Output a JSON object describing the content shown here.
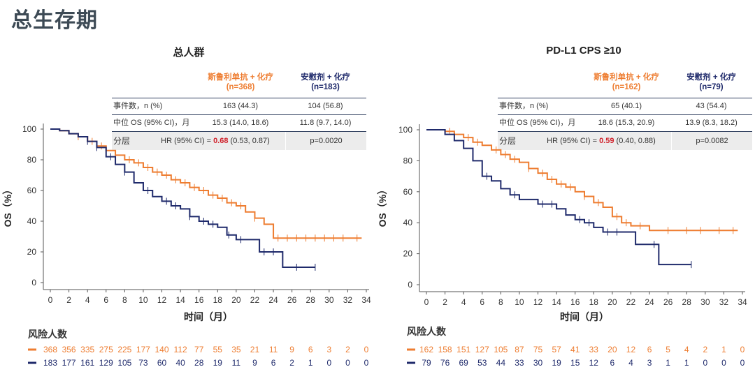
{
  "page_title": "总生存期",
  "chart_data": [
    {
      "type": "line",
      "subtitle": "总人群",
      "xlabel": "时间（月）",
      "ylabel": "OS（%）",
      "xlim": [
        0,
        34
      ],
      "ylim": [
        0,
        100
      ],
      "xticks": [
        0,
        2,
        4,
        6,
        8,
        10,
        12,
        14,
        16,
        18,
        20,
        22,
        24,
        26,
        28,
        30,
        32,
        34
      ],
      "yticks": [
        0,
        20,
        40,
        60,
        80,
        100
      ],
      "table": {
        "arm1_name": "斯鲁利单抗 + 化疗",
        "arm1_n": "(n=368)",
        "arm2_name": "安慰剂 + 化疗",
        "arm2_n": "(n=183)",
        "events_label": "事件数，n (%)",
        "events1": "163 (44.3)",
        "events2": "104 (56.8)",
        "median_label": "中位 OS (95% CI)，月",
        "median1": "15.3 (14.0, 18.6)",
        "median2": "11.8 (9.7, 14.0)",
        "strat_label": "分层",
        "hr_prefix": "HR (95% CI) = ",
        "hr_value": "0.68",
        "hr_ci": " (0.53, 0.87)",
        "p": "p=0.0020"
      },
      "series": [
        {
          "name": "斯鲁利单抗 + 化疗",
          "color": "#ee7d31",
          "x": [
            0,
            1,
            2,
            3,
            4,
            5,
            6,
            7,
            8,
            9,
            10,
            11,
            12,
            13,
            14,
            15,
            16,
            17,
            18,
            19,
            20,
            21,
            22,
            23,
            24,
            33.5
          ],
          "y": [
            100,
            99,
            97,
            95,
            92,
            89,
            86,
            83,
            80,
            78,
            75,
            72,
            70,
            67,
            65,
            62,
            60,
            57,
            55,
            52,
            50,
            46,
            42,
            38,
            29,
            29
          ],
          "censor": [
            3,
            4.5,
            5.5,
            7,
            8.5,
            9.5,
            10.5,
            11.5,
            12.5,
            13.5,
            14.5,
            15.5,
            16.5,
            17.5,
            18.5,
            19.5,
            20.5,
            22,
            24.5,
            25.5,
            26.5,
            27.5,
            28.5,
            29.5,
            30.5,
            31.5,
            33
          ],
          "risk": [
            368,
            356,
            335,
            275,
            225,
            177,
            140,
            112,
            77,
            55,
            35,
            21,
            11,
            9,
            6,
            3,
            2,
            0
          ]
        },
        {
          "name": "安慰剂 + 化疗",
          "color": "#1f2a6b",
          "x": [
            0,
            1,
            2,
            3,
            4,
            5,
            6,
            7,
            8,
            9,
            10,
            11,
            12,
            13,
            14,
            15,
            16,
            17,
            18,
            19,
            20,
            21,
            22.5,
            25,
            28.5
          ],
          "y": [
            100,
            99,
            97,
            95,
            92,
            88,
            82,
            77,
            72,
            65,
            60,
            56,
            53,
            50,
            48,
            43,
            40,
            38,
            36,
            31,
            28,
            28,
            20,
            10,
            10
          ],
          "censor": [
            4,
            5,
            6.5,
            8,
            10.5,
            12.5,
            13.5,
            15,
            16.5,
            17.5,
            19.2,
            20.5,
            23,
            24,
            26.5,
            28.5
          ],
          "risk": [
            183,
            177,
            161,
            129,
            105,
            73,
            60,
            40,
            28,
            19,
            11,
            9,
            6,
            2,
            1,
            0,
            0,
            0
          ]
        }
      ],
      "risk_title": "风险人数"
    },
    {
      "type": "line",
      "subtitle": "PD-L1 CPS ≥10",
      "xlabel": "时间（月）",
      "ylabel": "OS（%）",
      "xlim": [
        0,
        34
      ],
      "ylim": [
        0,
        100
      ],
      "xticks": [
        0,
        2,
        4,
        6,
        8,
        10,
        12,
        14,
        16,
        18,
        20,
        22,
        24,
        26,
        28,
        30,
        32,
        34
      ],
      "yticks": [
        0,
        20,
        40,
        60,
        80,
        100
      ],
      "table": {
        "arm1_name": "斯鲁利单抗 + 化疗",
        "arm1_n": "(n=162)",
        "arm2_name": "安慰剂 + 化疗",
        "arm2_n": "(n=79)",
        "events_label": "事件数，n (%)",
        "events1": "65 (40.1)",
        "events2": "43 (54.4)",
        "median_label": "中位 OS (95% CI)，月",
        "median1": "18.6 (15.3, 20.9)",
        "median2": "13.9 (8.3, 18.2)",
        "strat_label": "分层",
        "hr_prefix": "HR (95% CI) = ",
        "hr_value": "0.59",
        "hr_ci": " (0.40, 0.88)",
        "p": "p=0.0082"
      },
      "series": [
        {
          "name": "斯鲁利单抗 + 化疗",
          "color": "#ee7d31",
          "x": [
            0,
            2,
            3,
            4,
            5,
            6,
            7,
            8,
            9,
            10,
            11,
            12,
            13,
            14,
            15,
            16,
            17,
            18,
            19,
            20,
            21,
            22,
            24,
            33.5
          ],
          "y": [
            100,
            99,
            97,
            95,
            92,
            90,
            87,
            84,
            81,
            79,
            75,
            72,
            68,
            65,
            63,
            60,
            57,
            53,
            50,
            44,
            40,
            38,
            35,
            35
          ],
          "censor": [
            2.5,
            4.5,
            5.5,
            7.5,
            8.5,
            9.5,
            11,
            12.5,
            13.5,
            14.5,
            15.5,
            17,
            18.5,
            20.5,
            21.5,
            23,
            26,
            28,
            29.5,
            31.5,
            33
          ],
          "risk": [
            162,
            158,
            151,
            127,
            105,
            87,
            75,
            57,
            41,
            33,
            20,
            12,
            6,
            5,
            4,
            2,
            1,
            0
          ]
        },
        {
          "name": "安慰剂 + 化疗",
          "color": "#1f2a6b",
          "x": [
            0,
            2,
            3,
            4,
            5,
            6,
            7,
            8,
            9,
            10,
            12,
            14,
            15,
            16,
            17,
            18,
            19,
            22.5,
            25,
            28.5
          ],
          "y": [
            100,
            97,
            93,
            88,
            80,
            70,
            67,
            62,
            58,
            55,
            52,
            49,
            45,
            42,
            40,
            37,
            34,
            26,
            13,
            13
          ],
          "censor": [
            6.5,
            9.5,
            12.5,
            13.5,
            16.5,
            17.5,
            19.5,
            20.5,
            24.5,
            28.5
          ],
          "risk": [
            79,
            76,
            69,
            53,
            44,
            33,
            30,
            19,
            15,
            12,
            6,
            4,
            3,
            1,
            1,
            0,
            0,
            0
          ]
        }
      ],
      "risk_title": "风险人数"
    }
  ]
}
